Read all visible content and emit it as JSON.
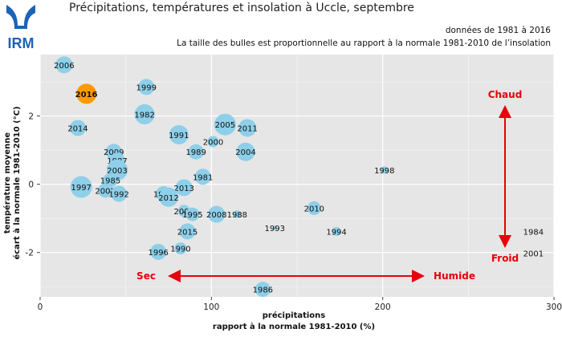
{
  "header": {
    "title": "Précipitations, températures et insolation à Uccle, septembre",
    "note_period": "données de 1981 à 2016",
    "note_bubbles": "La taille des bulles est proportionnelle au rapport à la normale 1981-2010 de l’insolation",
    "logo_text": "IRM"
  },
  "colors": {
    "panel": "#e6e6e6",
    "grid": "#ffffff",
    "bubble": "#8ecfe9",
    "highlight": "#ff9900",
    "highlight_text": "#e8000b",
    "arrow": "#e8000b",
    "logo": "#1d63b6"
  },
  "annotations": {
    "chaud": "Chaud",
    "froid": "Froid",
    "sec": "Sec",
    "humide": "Humide"
  },
  "chart_data": {
    "type": "scatter",
    "xlabel": [
      "précipitations",
      "rapport à la normale 1981-2010 (%)"
    ],
    "ylabel": [
      "température moyenne",
      "écart à la normale 1981-2010 (°C)"
    ],
    "xlim": [
      0,
      300
    ],
    "ylim": [
      -3.3,
      3.8
    ],
    "xticks": [
      0,
      100,
      200,
      300
    ],
    "yticks": [
      -2,
      0,
      2
    ],
    "grid": true,
    "highlight": "2016",
    "points": [
      {
        "label": "2006",
        "x": 14,
        "y": 3.5,
        "size": 1.05
      },
      {
        "label": "2016",
        "x": 27,
        "y": 2.65,
        "size": 1.25
      },
      {
        "label": "1999",
        "x": 62,
        "y": 2.85,
        "size": 1.0
      },
      {
        "label": "1982",
        "x": 61,
        "y": 2.05,
        "size": 1.25
      },
      {
        "label": "2014",
        "x": 22,
        "y": 1.65,
        "size": 1.0
      },
      {
        "label": "1991",
        "x": 81,
        "y": 1.45,
        "size": 1.2
      },
      {
        "label": "2005",
        "x": 108,
        "y": 1.75,
        "size": 1.35
      },
      {
        "label": "2011",
        "x": 121,
        "y": 1.65,
        "size": 1.1
      },
      {
        "label": "2000",
        "x": 101,
        "y": 1.25,
        "size": 0.7
      },
      {
        "label": "1989",
        "x": 91,
        "y": 0.95,
        "size": 0.95
      },
      {
        "label": "2004",
        "x": 120,
        "y": 0.95,
        "size": 1.15
      },
      {
        "label": "2009",
        "x": 43,
        "y": 0.95,
        "size": 1.0
      },
      {
        "label": "1987",
        "x": 45,
        "y": 0.7,
        "size": 0.95
      },
      {
        "label": "2003",
        "x": 45,
        "y": 0.42,
        "size": 1.3
      },
      {
        "label": "1998",
        "x": 201,
        "y": 0.42,
        "size": 0.45
      },
      {
        "label": "1985",
        "x": 41,
        "y": 0.12,
        "size": 0.9
      },
      {
        "label": "1981",
        "x": 95,
        "y": 0.22,
        "size": 1.0
      },
      {
        "label": "1997",
        "x": 24,
        "y": -0.08,
        "size": 1.35
      },
      {
        "label": "2002",
        "x": 38,
        "y": -0.18,
        "size": 0.9
      },
      {
        "label": "1992",
        "x": 46,
        "y": -0.28,
        "size": 1.0
      },
      {
        "label": "2013",
        "x": 84,
        "y": -0.1,
        "size": 1.05
      },
      {
        "label": "1983",
        "x": 72,
        "y": -0.28,
        "size": 0.95
      },
      {
        "label": "2012",
        "x": 75,
        "y": -0.38,
        "size": 1.2
      },
      {
        "label": "2010",
        "x": 160,
        "y": -0.7,
        "size": 0.85
      },
      {
        "label": "2007",
        "x": 84,
        "y": -0.78,
        "size": 0.75
      },
      {
        "label": "1995",
        "x": 89,
        "y": -0.88,
        "size": 0.85
      },
      {
        "label": "2008",
        "x": 103,
        "y": -0.88,
        "size": 1.05
      },
      {
        "label": "1988",
        "x": 115,
        "y": -0.88,
        "size": 0.5
      },
      {
        "label": "2015",
        "x": 86,
        "y": -1.38,
        "size": 1.0
      },
      {
        "label": "1993",
        "x": 137,
        "y": -1.28,
        "size": 0.3
      },
      {
        "label": "1994",
        "x": 173,
        "y": -1.38,
        "size": 0.55
      },
      {
        "label": "1984",
        "x": 288,
        "y": -1.38,
        "size": 0.0
      },
      {
        "label": "1990",
        "x": 82,
        "y": -1.88,
        "size": 0.75
      },
      {
        "label": "1996",
        "x": 69,
        "y": -1.98,
        "size": 1.0
      },
      {
        "label": "2001",
        "x": 288,
        "y": -2.02,
        "size": 0.0
      },
      {
        "label": "1986",
        "x": 130,
        "y": -3.08,
        "size": 0.95
      }
    ]
  }
}
